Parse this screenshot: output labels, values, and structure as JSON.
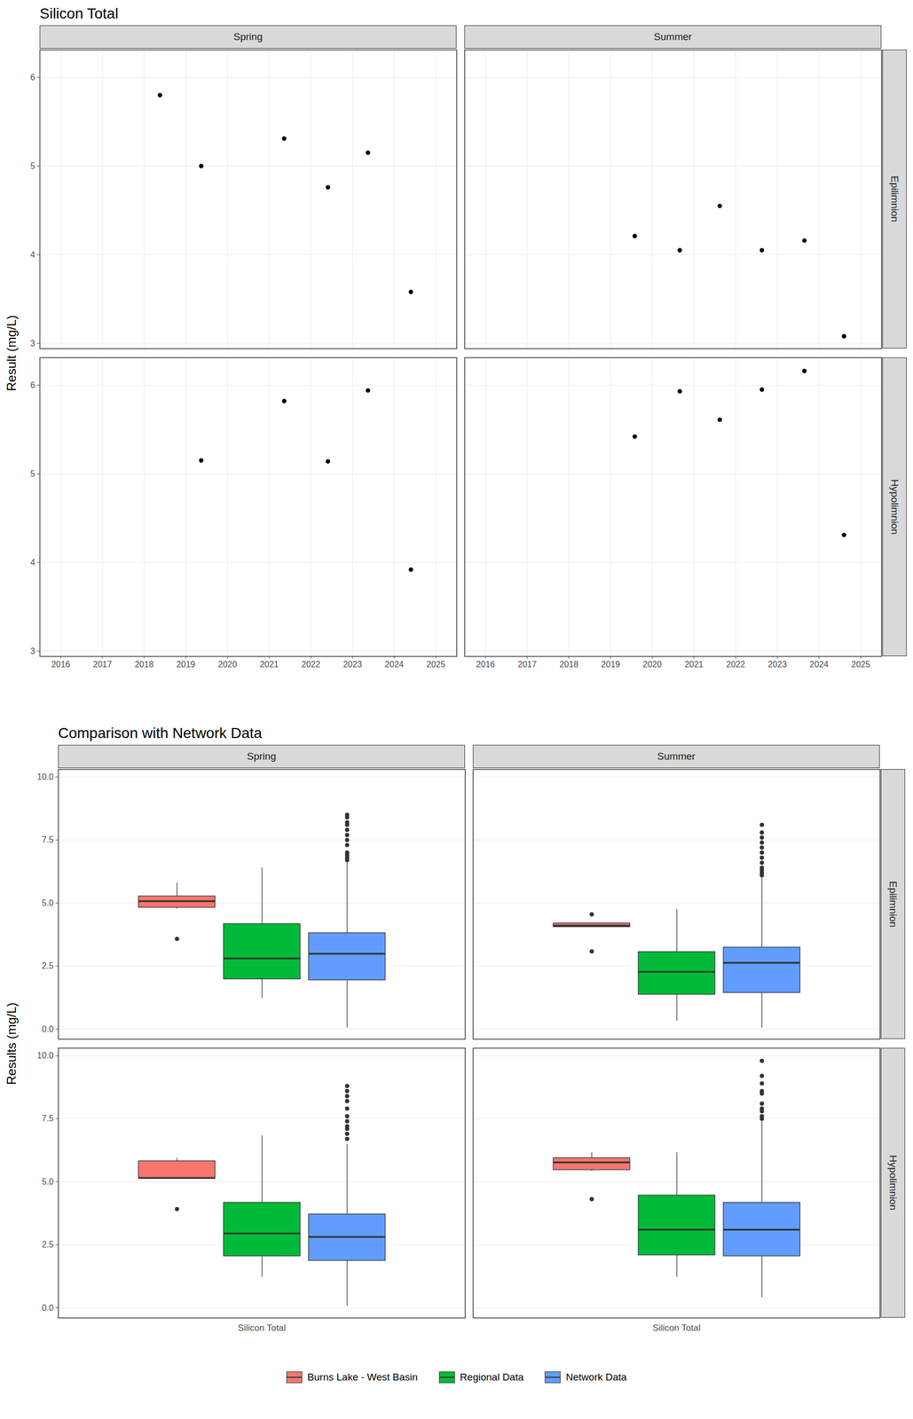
{
  "chart_data": [
    {
      "type": "scatter",
      "title": "Silicon Total",
      "ylabel": "Result (mg/L)",
      "columns": [
        "Spring",
        "Summer"
      ],
      "rows": [
        "Epilimnion",
        "Hypolimnion"
      ],
      "xlim": [
        2015.5,
        2025.5
      ],
      "xticks": [
        2016,
        2017,
        2018,
        2019,
        2020,
        2021,
        2022,
        2023,
        2024,
        2025
      ],
      "ylim": [
        2.94,
        6.31
      ],
      "yticks": [
        3,
        4,
        5,
        6
      ],
      "grid": true,
      "color": "#000000",
      "panels": [
        {
          "column": "Spring",
          "row": "Epilimnion",
          "x": [
            2018.38,
            2019.37,
            2021.36,
            2022.41,
            2023.37,
            2024.4
          ],
          "values": [
            5.8,
            5.0,
            5.31,
            4.76,
            5.15,
            3.58
          ]
        },
        {
          "column": "Summer",
          "row": "Epilimnion",
          "x": [
            2019.58,
            2020.66,
            2021.62,
            2022.63,
            2023.65,
            2024.6
          ],
          "values": [
            4.21,
            4.05,
            4.55,
            4.05,
            4.16,
            3.08
          ]
        },
        {
          "column": "Spring",
          "row": "Hypolimnion",
          "x": [
            2019.37,
            2021.36,
            2022.41,
            2023.37,
            2024.4
          ],
          "values": [
            5.15,
            5.82,
            5.14,
            5.94,
            3.92
          ]
        },
        {
          "column": "Summer",
          "row": "Hypolimnion",
          "x": [
            2019.58,
            2020.66,
            2021.62,
            2022.63,
            2023.65,
            2024.6
          ],
          "values": [
            5.42,
            5.93,
            5.61,
            5.95,
            6.16,
            4.31
          ]
        }
      ]
    },
    {
      "type": "box",
      "title": "Comparison with Network Data",
      "ylabel": "Results (mg/L)",
      "categories": [
        "Silicon Total"
      ],
      "columns": [
        "Spring",
        "Summer"
      ],
      "rows": [
        "Epilimnion",
        "Hypolimnion"
      ],
      "ylim": [
        -0.4,
        10.3
      ],
      "yticks": [
        {
          "value": 0,
          "label": "0.0"
        },
        {
          "value": 2.5,
          "label": "2.5"
        },
        {
          "value": 5,
          "label": "5.0"
        },
        {
          "value": 7.5,
          "label": "7.5"
        },
        {
          "value": 10,
          "label": "10.0"
        }
      ],
      "grid": true,
      "legend": "bottom",
      "series": [
        {
          "name": "Burns Lake - West Basin",
          "color": "#F8766D"
        },
        {
          "name": "Regional Data",
          "color": "#00BA38"
        },
        {
          "name": "Network Data",
          "color": "#619CFF"
        }
      ],
      "panels": [
        {
          "column": "Spring",
          "row": "Epilimnion",
          "boxes": [
            {
              "series": "Burns Lake - West Basin",
              "low": 4.76,
              "q1": 4.82,
              "median": 5.075,
              "q3": 5.27,
              "high": 5.8,
              "outliers": [
                3.58
              ]
            },
            {
              "series": "Regional Data",
              "low": 1.22,
              "q1": 1.98,
              "median": 2.8,
              "q3": 4.17,
              "high": 6.4,
              "outliers": []
            },
            {
              "series": "Network Data",
              "low": 0.05,
              "q1": 1.94,
              "median": 2.99,
              "q3": 3.81,
              "high": 6.6,
              "outliers": [
                6.7,
                6.8,
                6.9,
                7.0,
                7.3,
                7.5,
                7.7,
                7.9,
                8.1,
                8.2,
                8.4,
                8.5
              ]
            }
          ]
        },
        {
          "column": "Summer",
          "row": "Epilimnion",
          "boxes": [
            {
              "series": "Burns Lake - West Basin",
              "low": 4.05,
              "q1": 4.05,
              "median": 4.105,
              "q3": 4.1975,
              "high": 4.21,
              "outliers": [
                3.08,
                4.55
              ]
            },
            {
              "series": "Regional Data",
              "low": 0.32,
              "q1": 1.37,
              "median": 2.27,
              "q3": 3.06,
              "high": 4.75,
              "outliers": []
            },
            {
              "series": "Network Data",
              "low": 0.05,
              "q1": 1.44,
              "median": 2.63,
              "q3": 3.24,
              "high": 6.0,
              "outliers": [
                6.1,
                6.2,
                6.3,
                6.4,
                6.6,
                6.8,
                7.0,
                7.2,
                7.4,
                7.6,
                7.8,
                8.1
              ]
            }
          ]
        },
        {
          "column": "Spring",
          "row": "Hypolimnion",
          "boxes": [
            {
              "series": "Burns Lake - West Basin",
              "low": 5.14,
              "q1": 5.14,
              "median": 5.15,
              "q3": 5.82,
              "high": 5.94,
              "outliers": [
                3.92
              ]
            },
            {
              "series": "Regional Data",
              "low": 1.22,
              "q1": 2.05,
              "median": 2.95,
              "q3": 4.17,
              "high": 6.83,
              "outliers": []
            },
            {
              "series": "Network Data",
              "low": 0.07,
              "q1": 1.87,
              "median": 2.81,
              "q3": 3.71,
              "high": 6.5,
              "outliers": [
                6.7,
                6.9,
                7.1,
                7.2,
                7.4,
                7.6,
                7.9,
                8.2,
                8.4,
                8.6,
                8.8
              ]
            }
          ]
        },
        {
          "column": "Summer",
          "row": "Hypolimnion",
          "boxes": [
            {
              "series": "Burns Lake - West Basin",
              "low": 5.42,
              "q1": 5.4675,
              "median": 5.77,
              "q3": 5.945,
              "high": 6.16,
              "outliers": [
                4.31
              ]
            },
            {
              "series": "Regional Data",
              "low": 1.22,
              "q1": 2.09,
              "median": 3.1,
              "q3": 4.46,
              "high": 6.16,
              "outliers": []
            },
            {
              "series": "Network Data",
              "low": 0.4,
              "q1": 2.05,
              "median": 3.1,
              "q3": 4.17,
              "high": 7.4,
              "outliers": [
                7.5,
                7.6,
                7.8,
                7.9,
                8.1,
                8.5,
                8.6,
                8.9,
                9.2,
                9.8
              ]
            }
          ]
        }
      ]
    }
  ]
}
